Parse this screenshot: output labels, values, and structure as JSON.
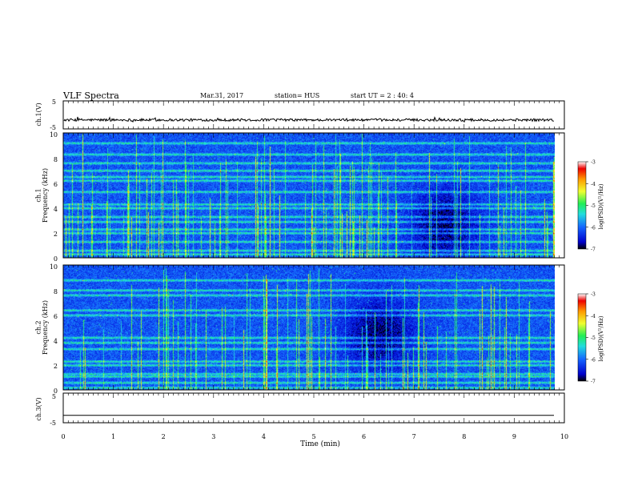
{
  "header": {
    "title": "VLF Spectra",
    "date": "Mar.31, 2017",
    "station": "station= HUS",
    "start": "start  UT  =   2 : 40: 4"
  },
  "colors": {
    "background": "#ffffff",
    "axes": "#000000",
    "trace": "#000000",
    "colormap": [
      "#000000",
      "#0000cc",
      "#1566ff",
      "#22dddd",
      "#22ee55",
      "#f0ff30",
      "#ff9900",
      "#ee0000",
      "#ffffff"
    ]
  },
  "chart_data": [
    {
      "type": "line",
      "ylabel": "ch.1(V)",
      "ylim": [
        -5,
        5
      ],
      "yticks": [
        "5",
        "-5"
      ],
      "x": [
        0,
        10
      ],
      "series": [
        {
          "values": [
            -1.8,
            -1.8
          ]
        }
      ]
    },
    {
      "type": "heatmap",
      "ylabel": "ch.1\nFrequency (kHz)",
      "ylim": [
        0,
        10
      ],
      "yticks": [
        "0",
        "2",
        "4",
        "6",
        "8",
        "10"
      ],
      "xlim": [
        0,
        9.8
      ],
      "bands_khz": [
        0.3,
        0.6,
        1.3,
        2.0,
        2.3,
        2.9,
        3.3,
        4.0,
        4.3,
        5.3,
        6.2,
        6.5,
        7.0,
        7.6,
        8.3,
        9.2
      ],
      "quiet_region": {
        "t_min": 7.6,
        "f_khz": 2.7
      },
      "colorbar": {
        "label": "log(PSD)(V²/Hz)",
        "range": [
          -7,
          -3
        ],
        "ticks": [
          "-3",
          "-4",
          "-5",
          "-6",
          "-7"
        ]
      }
    },
    {
      "type": "heatmap",
      "ylabel": "ch.2\nFrequency (kHz)",
      "ylim": [
        0,
        10
      ],
      "yticks": [
        "0",
        "2",
        "4",
        "6",
        "8",
        "10"
      ],
      "xlim": [
        0,
        9.8
      ],
      "bands_khz": [
        0.2,
        0.6,
        1.1,
        1.3,
        2.0,
        2.3,
        3.3,
        3.8,
        4.2,
        6.0,
        6.4,
        7.6,
        8.0,
        8.8
      ],
      "quiet_region": {
        "t_min": 6.3,
        "f_khz": 4.5
      },
      "colorbar": {
        "label": "log(PSD)(V²/Hz)",
        "range": [
          -7,
          -3
        ],
        "ticks": [
          "-3",
          "-4",
          "-5",
          "-6",
          "-7"
        ]
      }
    },
    {
      "type": "line",
      "ylabel": "ch.3(V)",
      "ylim": [
        -5,
        5
      ],
      "yticks": [
        "5",
        "-5"
      ],
      "x": [
        0,
        10
      ],
      "series": [
        {
          "values": [
            -2.5,
            -2.5
          ]
        }
      ]
    }
  ],
  "xaxis": {
    "label": "Time (min)",
    "xlim": [
      0,
      10
    ],
    "ticks": [
      "0",
      "1",
      "2",
      "3",
      "4",
      "5",
      "6",
      "7",
      "8",
      "9",
      "10"
    ]
  }
}
